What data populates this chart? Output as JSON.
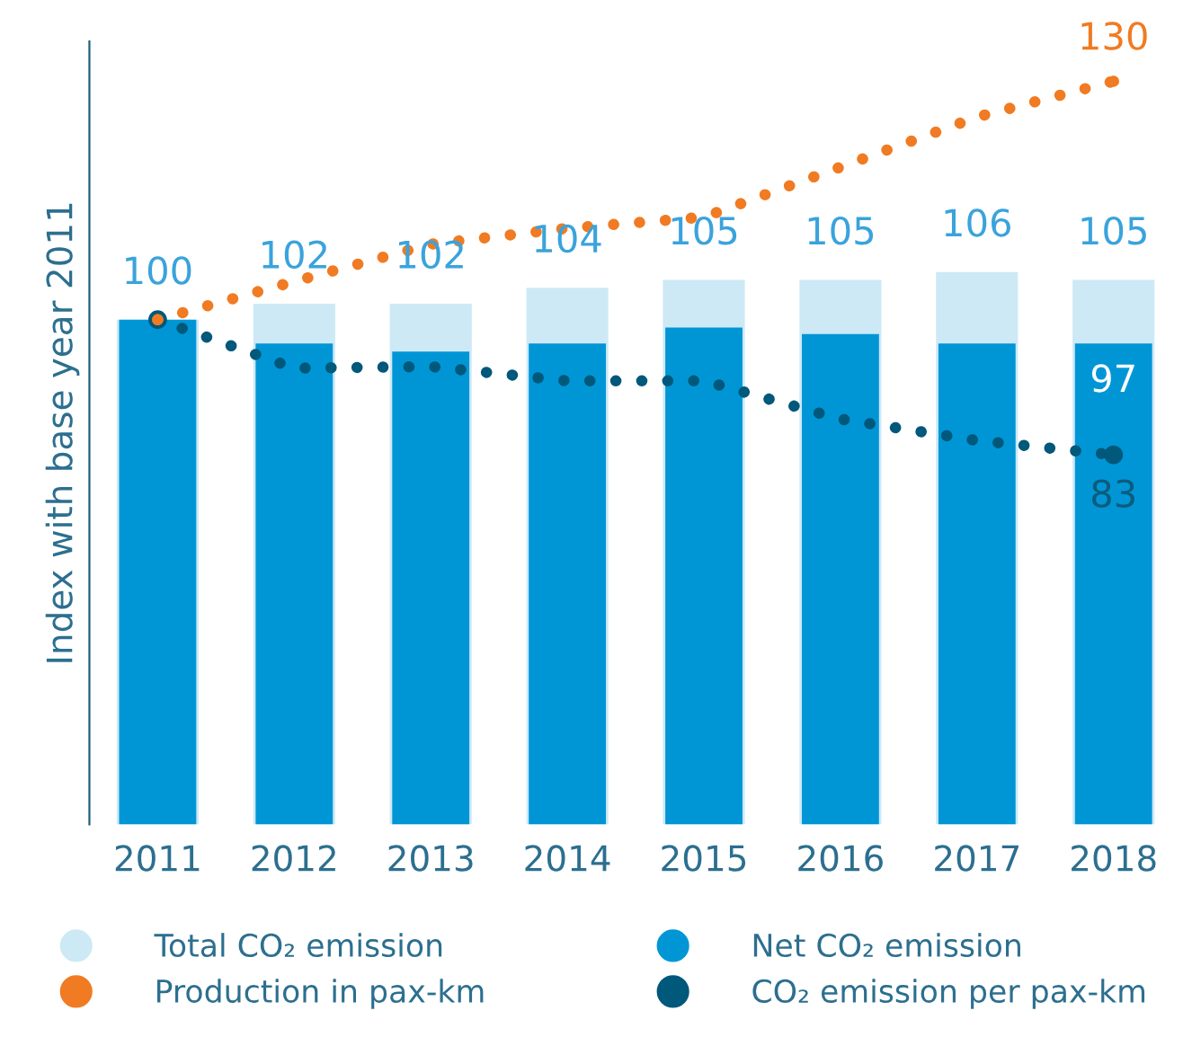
{
  "chart_data": {
    "type": "bar",
    "ylabel": "Index with base year 2011",
    "categories": [
      "2011",
      "2012",
      "2013",
      "2014",
      "2015",
      "2016",
      "2017",
      "2018"
    ],
    "series": [
      {
        "name": "Total CO₂ emission",
        "color": "#cde9f6",
        "values": [
          100,
          102,
          102,
          104,
          105,
          105,
          106,
          105
        ],
        "value_labels": [
          "100",
          "102",
          "102",
          "104",
          "105",
          "105",
          "106",
          "105"
        ]
      },
      {
        "name": "Net CO₂ emission",
        "color": "#0096d6",
        "values": [
          100,
          97,
          96,
          97,
          99,
          98.2,
          97,
          97
        ],
        "value_labels": [
          null,
          null,
          null,
          null,
          null,
          null,
          null,
          "97"
        ]
      },
      {
        "name": "Production in pax-km",
        "type": "line",
        "color": "#f07b22",
        "values": [
          100,
          104.8,
          109.5,
          111.5,
          112.9,
          119.2,
          125.5,
          130
        ],
        "value_labels": [
          null,
          null,
          null,
          null,
          null,
          null,
          null,
          "130"
        ]
      },
      {
        "name": "CO₂ emission per pax-km",
        "type": "line",
        "color": "#00587a",
        "values": [
          100,
          93.9,
          94.1,
          92.3,
          92.3,
          87.5,
          84.8,
          83
        ],
        "value_labels": [
          null,
          null,
          null,
          null,
          null,
          null,
          null,
          "83"
        ]
      }
    ],
    "ylim": [
      36.5,
      135
    ],
    "tick_labels": "x",
    "line_style": "dotted",
    "marker": "none",
    "legend": "bottom",
    "grid": false
  }
}
